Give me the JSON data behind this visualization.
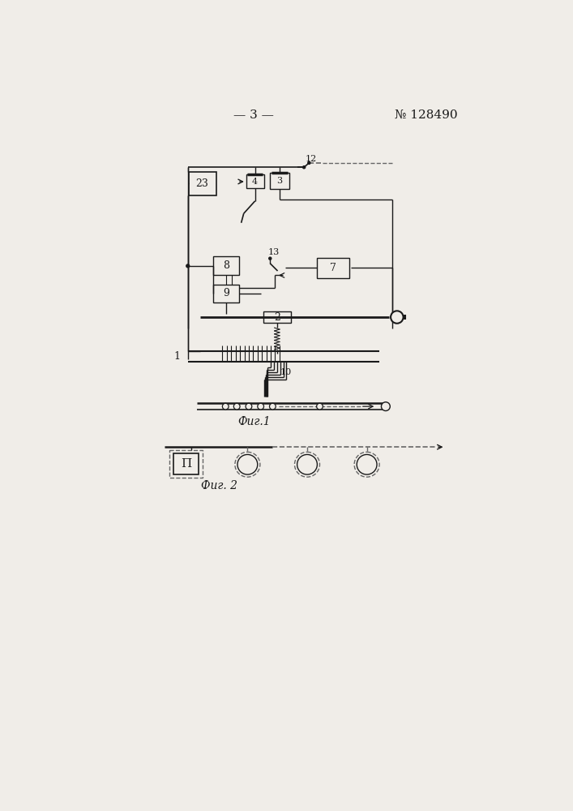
{
  "page_title_left": "— 3 —",
  "page_title_right": "№ 128490",
  "fig1_caption": "Фиг.1",
  "fig2_caption": "Фиг. 2",
  "bg_color": "#f0ede8",
  "line_color": "#1a1a1a",
  "box_color": "#f0ede8",
  "dashed_color": "#666666"
}
